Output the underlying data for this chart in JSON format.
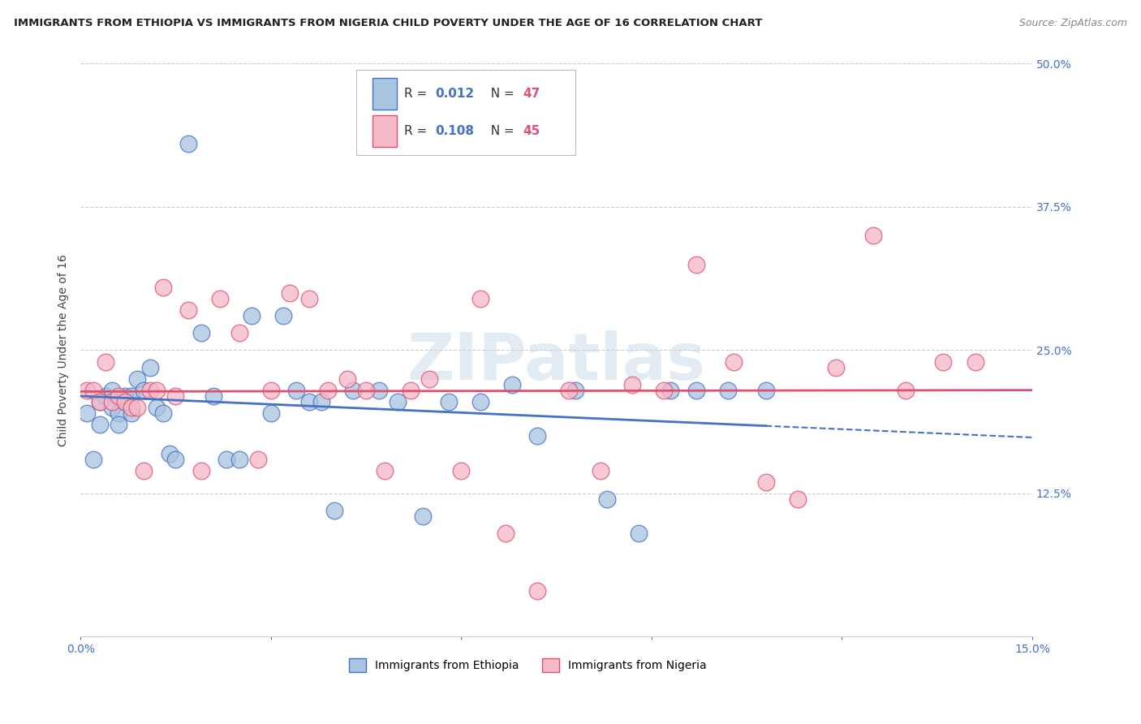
{
  "title": "IMMIGRANTS FROM ETHIOPIA VS IMMIGRANTS FROM NIGERIA CHILD POVERTY UNDER THE AGE OF 16 CORRELATION CHART",
  "source": "Source: ZipAtlas.com",
  "ylabel": "Child Poverty Under the Age of 16",
  "xlim": [
    0.0,
    0.15
  ],
  "ylim": [
    0.0,
    0.5
  ],
  "yticks_right": [
    0.0,
    0.125,
    0.25,
    0.375,
    0.5
  ],
  "yticklabels_right": [
    "",
    "12.5%",
    "25.0%",
    "37.5%",
    "50.0%"
  ],
  "legend_label_ethiopia": "Immigrants from Ethiopia",
  "legend_label_nigeria": "Immigrants from Nigeria",
  "color_ethiopia": "#a8c4e0",
  "color_nigeria": "#f4b8c8",
  "color_line_ethiopia": "#4472c4",
  "color_line_nigeria": "#e05070",
  "color_r_value": "#4472c4",
  "color_n_value": "#e05070",
  "background_color": "#ffffff",
  "grid_color": "#cccccc",
  "watermark_text": "ZIPatlas",
  "ethiopia_x": [
    0.001,
    0.002,
    0.003,
    0.003,
    0.004,
    0.005,
    0.005,
    0.006,
    0.006,
    0.007,
    0.007,
    0.008,
    0.008,
    0.009,
    0.01,
    0.011,
    0.012,
    0.013,
    0.014,
    0.015,
    0.017,
    0.019,
    0.021,
    0.023,
    0.025,
    0.027,
    0.03,
    0.032,
    0.034,
    0.036,
    0.038,
    0.04,
    0.043,
    0.047,
    0.05,
    0.054,
    0.058,
    0.063,
    0.068,
    0.072,
    0.078,
    0.083,
    0.088,
    0.093,
    0.097,
    0.102,
    0.108
  ],
  "ethiopia_y": [
    0.195,
    0.155,
    0.205,
    0.185,
    0.21,
    0.215,
    0.2,
    0.195,
    0.185,
    0.21,
    0.205,
    0.21,
    0.195,
    0.225,
    0.215,
    0.235,
    0.2,
    0.195,
    0.16,
    0.155,
    0.43,
    0.265,
    0.21,
    0.155,
    0.155,
    0.28,
    0.195,
    0.28,
    0.215,
    0.205,
    0.205,
    0.11,
    0.215,
    0.215,
    0.205,
    0.105,
    0.205,
    0.205,
    0.22,
    0.175,
    0.215,
    0.12,
    0.09,
    0.215,
    0.215,
    0.215,
    0.215
  ],
  "nigeria_x": [
    0.001,
    0.002,
    0.003,
    0.004,
    0.005,
    0.006,
    0.007,
    0.008,
    0.009,
    0.01,
    0.011,
    0.012,
    0.013,
    0.015,
    0.017,
    0.019,
    0.022,
    0.025,
    0.028,
    0.03,
    0.033,
    0.036,
    0.039,
    0.042,
    0.045,
    0.048,
    0.052,
    0.055,
    0.06,
    0.063,
    0.067,
    0.072,
    0.077,
    0.082,
    0.087,
    0.092,
    0.097,
    0.103,
    0.108,
    0.113,
    0.119,
    0.125,
    0.13,
    0.136,
    0.141
  ],
  "nigeria_y": [
    0.215,
    0.215,
    0.205,
    0.24,
    0.205,
    0.21,
    0.205,
    0.2,
    0.2,
    0.145,
    0.215,
    0.215,
    0.305,
    0.21,
    0.285,
    0.145,
    0.295,
    0.265,
    0.155,
    0.215,
    0.3,
    0.295,
    0.215,
    0.225,
    0.215,
    0.145,
    0.215,
    0.225,
    0.145,
    0.295,
    0.09,
    0.04,
    0.215,
    0.145,
    0.22,
    0.215,
    0.325,
    0.24,
    0.135,
    0.12,
    0.235,
    0.35,
    0.215,
    0.24,
    0.24
  ]
}
